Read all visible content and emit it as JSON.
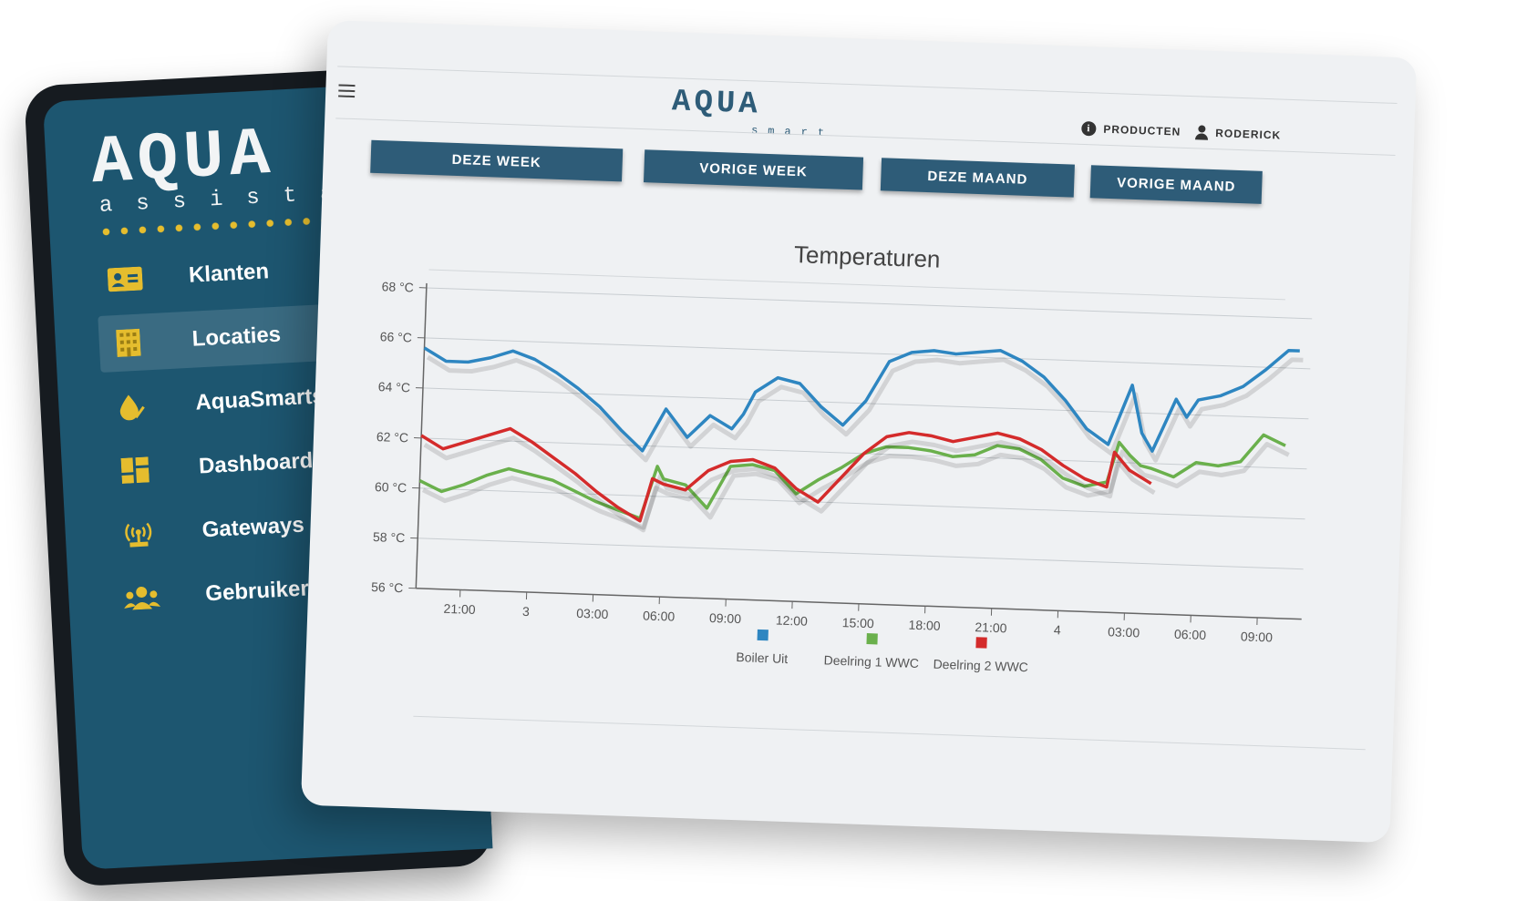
{
  "sidebar": {
    "logo": "AQUA",
    "logo_sub": "assistant",
    "accent": "#e5bd2e",
    "items": [
      {
        "label": "Klanten",
        "icon": "id-card-icon"
      },
      {
        "label": "Locaties",
        "icon": "building-icon",
        "active": true
      },
      {
        "label": "AquaSmarts",
        "icon": "water-drop-check-icon"
      },
      {
        "label": "Dashboard",
        "icon": "dashboard-grid-icon"
      },
      {
        "label": "Gateways",
        "icon": "antenna-icon"
      },
      {
        "label": "Gebruikers",
        "icon": "users-icon"
      }
    ]
  },
  "header": {
    "logo": "AQUA",
    "logo_sub": "smart",
    "menu_icon": "hamburger-menu-icon",
    "links": [
      {
        "label": "PRODUCTEN",
        "icon": "info-icon"
      },
      {
        "label": "RODERICK",
        "icon": "user-icon"
      }
    ]
  },
  "periods": [
    "DEZE WEEK",
    "VORIGE WEEK",
    "DEZE MAAND",
    "VORIGE MAAND"
  ],
  "chart_data": {
    "type": "line",
    "title": "Temperaturen",
    "ylim": [
      56,
      68
    ],
    "y_ticks": [
      "56 °C",
      "58 °C",
      "60 °C",
      "62 °C",
      "64 °C",
      "66 °C",
      "68 °C"
    ],
    "x_ticks": [
      "21:00",
      "3",
      "03:00",
      "06:00",
      "09:00",
      "12:00",
      "15:00",
      "18:00",
      "21:00",
      "4",
      "03:00",
      "06:00",
      "09:00"
    ],
    "x_tick_positions": [
      2,
      5,
      8,
      11,
      14,
      17,
      20,
      23,
      26,
      29,
      32,
      35,
      38
    ],
    "xlim": [
      0,
      40
    ],
    "legend_position": "bottom",
    "grid": true,
    "series": [
      {
        "name": "Boiler Uit",
        "color": "#2e86c1",
        "x": [
          0,
          1,
          2,
          3,
          4,
          5,
          6,
          7,
          8,
          9,
          10,
          11,
          12,
          13,
          14,
          14.5,
          15,
          16,
          17,
          18,
          19,
          20,
          21,
          22,
          23,
          24,
          25,
          26,
          27,
          28,
          29,
          30,
          31,
          32,
          32.5,
          33,
          34,
          34.5,
          35,
          36,
          37,
          38,
          39,
          39.5
        ],
        "y": [
          65.6,
          65.1,
          65.1,
          65.3,
          65.6,
          65.3,
          64.8,
          64.2,
          63.5,
          62.6,
          61.8,
          63.5,
          62.4,
          63.3,
          62.8,
          63.4,
          64.3,
          64.9,
          64.7,
          63.8,
          63.1,
          64.1,
          65.7,
          66.1,
          66.2,
          66.1,
          66.2,
          66.3,
          65.9,
          65.3,
          64.4,
          63.3,
          62.7,
          65.1,
          63.2,
          62.5,
          64.6,
          63.9,
          64.6,
          64.8,
          65.2,
          65.9,
          66.7,
          66.7
        ]
      },
      {
        "name": "Deelring 1 WWC",
        "color": "#6ab04c",
        "x": [
          0,
          1,
          2,
          3,
          4,
          5,
          6,
          7,
          8,
          9,
          10,
          10.7,
          11,
          12,
          13,
          14,
          15,
          16,
          17,
          18,
          19,
          20,
          21,
          22,
          23,
          24,
          25,
          26,
          27,
          28,
          29,
          30,
          31,
          31.5,
          32,
          32.5,
          33,
          34,
          35,
          36,
          37,
          38,
          39
        ],
        "y": [
          60.3,
          59.9,
          60.2,
          60.6,
          60.9,
          60.7,
          60.5,
          60.1,
          59.7,
          59.4,
          59.1,
          61.2,
          60.7,
          60.5,
          59.6,
          61.3,
          61.4,
          61.2,
          60.3,
          60.9,
          61.4,
          62.0,
          62.3,
          62.3,
          62.2,
          62.0,
          62.1,
          62.5,
          62.4,
          62.0,
          61.3,
          61.0,
          61.2,
          62.8,
          62.3,
          61.9,
          61.8,
          61.5,
          62.1,
          62.0,
          62.2,
          63.3,
          62.9
        ]
      },
      {
        "name": "Deelring 2 WWC",
        "color": "#d42b2b",
        "x": [
          0,
          1,
          2,
          3,
          4,
          5,
          6,
          7,
          8,
          9,
          10,
          10.5,
          11,
          12,
          13,
          14,
          15,
          16,
          17,
          18,
          19,
          20,
          21,
          22,
          23,
          24,
          25,
          26,
          27,
          28,
          29,
          30,
          31,
          31.3,
          32,
          33
        ],
        "y": [
          62.1,
          61.6,
          61.9,
          62.2,
          62.5,
          62.0,
          61.4,
          60.8,
          60.1,
          59.5,
          59.0,
          60.7,
          60.5,
          60.3,
          61.1,
          61.5,
          61.6,
          61.3,
          60.5,
          60.0,
          61.0,
          62.0,
          62.7,
          62.9,
          62.8,
          62.6,
          62.8,
          63.0,
          62.8,
          62.4,
          61.8,
          61.3,
          61.0,
          62.4,
          61.7,
          61.2
        ]
      }
    ]
  }
}
